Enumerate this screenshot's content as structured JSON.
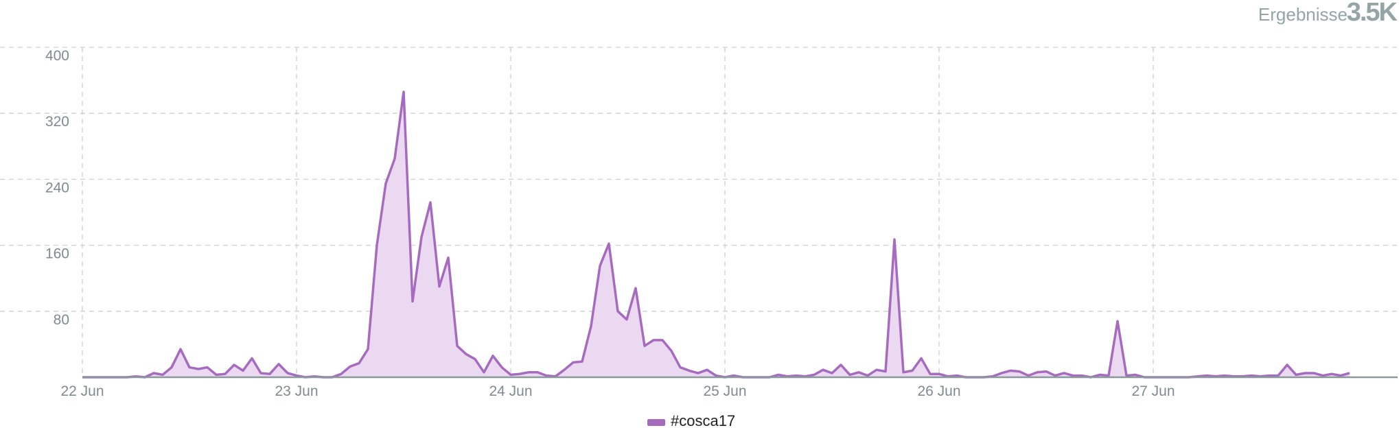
{
  "header": {
    "label": "Ergebnisse",
    "value": "3.5K"
  },
  "chart_data": {
    "type": "area",
    "categories": [
      "22 Jun",
      null,
      null,
      null,
      null,
      null,
      null,
      null,
      null,
      null,
      null,
      null,
      null,
      null,
      null,
      null,
      null,
      null,
      null,
      null,
      null,
      null,
      null,
      null,
      "23 Jun",
      null,
      null,
      null,
      null,
      null,
      null,
      null,
      null,
      null,
      null,
      null,
      null,
      null,
      null,
      null,
      null,
      null,
      null,
      null,
      null,
      null,
      null,
      null,
      "24 Jun",
      null,
      null,
      null,
      null,
      null,
      null,
      null,
      null,
      null,
      null,
      null,
      null,
      null,
      null,
      null,
      null,
      null,
      null,
      null,
      null,
      null,
      null,
      null,
      "25 Jun",
      null,
      null,
      null,
      null,
      null,
      null,
      null,
      null,
      null,
      null,
      null,
      null,
      null,
      null,
      null,
      null,
      null,
      null,
      null,
      null,
      null,
      null,
      null,
      "26 Jun",
      null,
      null,
      null,
      null,
      null,
      null,
      null,
      null,
      null,
      null,
      null,
      null,
      null,
      null,
      null,
      null,
      null,
      null,
      null,
      null,
      null,
      null,
      null,
      "27 Jun",
      null,
      null,
      null,
      null,
      null,
      null,
      null,
      null,
      null,
      null,
      null,
      null,
      null,
      null,
      null,
      null,
      null,
      null,
      null,
      null,
      null,
      null
    ],
    "series": [
      {
        "name": "#cosca17",
        "color": "#a66bbf",
        "fill": "#ead9f0",
        "values": [
          0,
          0,
          0,
          0,
          0,
          0,
          1,
          0,
          5,
          3,
          12,
          34,
          12,
          10,
          12,
          3,
          4,
          15,
          8,
          23,
          5,
          4,
          16,
          5,
          2,
          0,
          1,
          0,
          0,
          4,
          13,
          17,
          34,
          160,
          235,
          265,
          346,
          92,
          170,
          212,
          110,
          145,
          38,
          28,
          22,
          6,
          26,
          12,
          3,
          4,
          6,
          6,
          2,
          1,
          9,
          18,
          19,
          62,
          135,
          162,
          80,
          70,
          108,
          38,
          45,
          45,
          32,
          12,
          8,
          5,
          9,
          2,
          0,
          2,
          0,
          0,
          0,
          0,
          3,
          1,
          2,
          1,
          3,
          9,
          5,
          15,
          3,
          6,
          2,
          9,
          7,
          167,
          6,
          8,
          23,
          4,
          4,
          1,
          2,
          0,
          0,
          0,
          1,
          5,
          8,
          7,
          2,
          6,
          7,
          2,
          5,
          2,
          2,
          0,
          3,
          2,
          68,
          2,
          3,
          0,
          0,
          0,
          0,
          0,
          0,
          1,
          2,
          1,
          2,
          1,
          1,
          2,
          1,
          2,
          2,
          15,
          3,
          5,
          5,
          2,
          4,
          2,
          5
        ]
      }
    ],
    "ylim": [
      0,
      400
    ],
    "yticks": [
      80,
      160,
      240,
      320,
      400
    ],
    "grid": true
  }
}
